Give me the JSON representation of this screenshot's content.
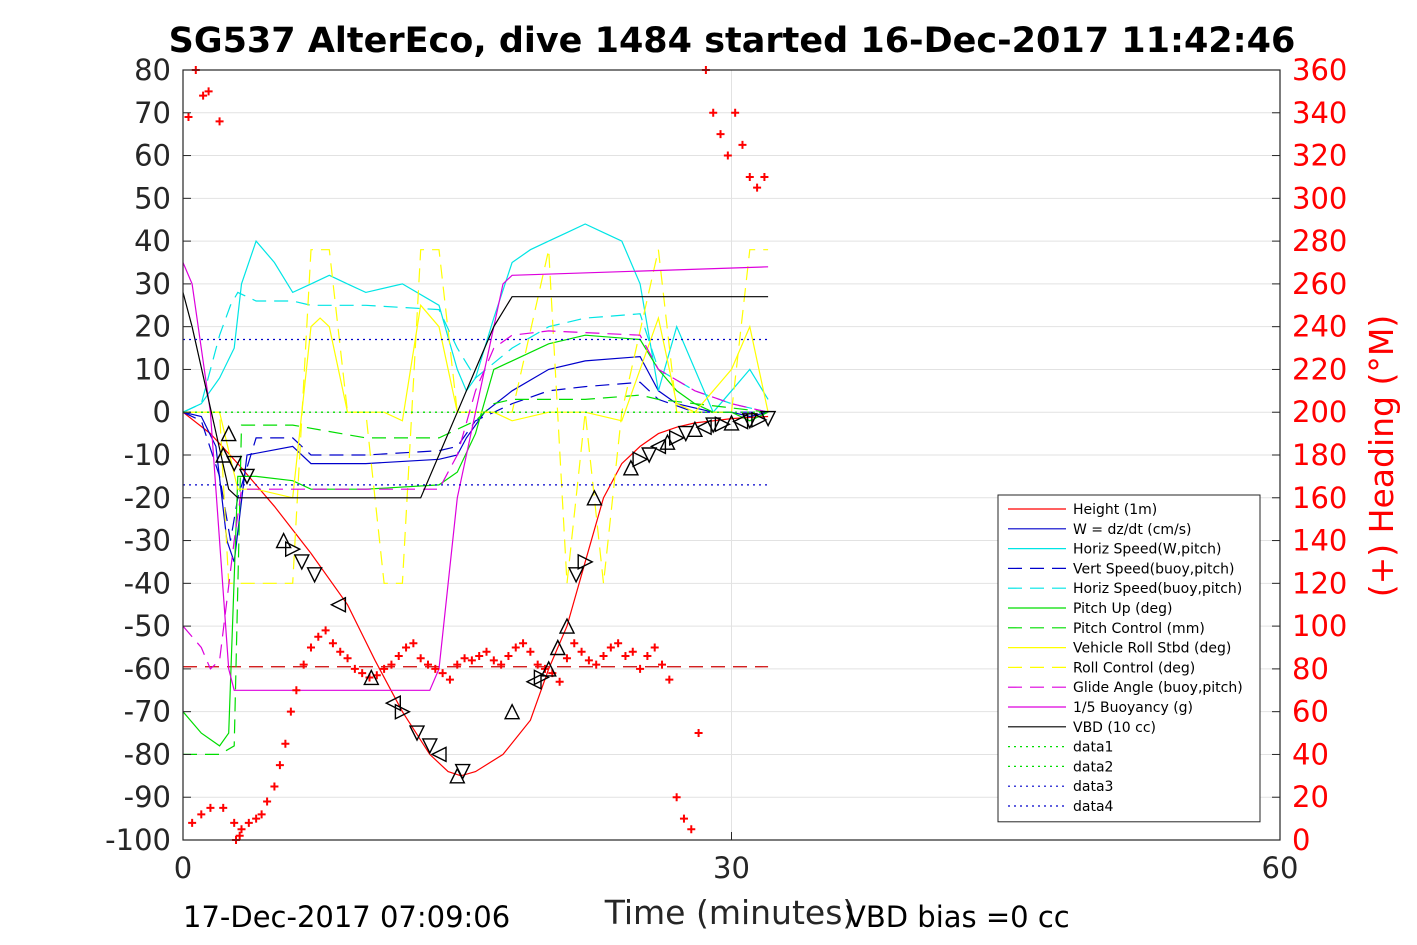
{
  "chart_data": {
    "type": "line",
    "title": "SG537 AlterEco, dive 1484 started 16-Dec-2017 11:42:46",
    "xlabel": "Time (minutes)",
    "ylabel": "",
    "y2label": "(+) Heading (°M)",
    "xlim": [
      0,
      60
    ],
    "ylim": [
      -100,
      80
    ],
    "y2lim": [
      0,
      360
    ],
    "x_ticks": [
      "0",
      "30",
      "60"
    ],
    "y_ticks": [
      "80",
      "70",
      "60",
      "50",
      "40",
      "30",
      "20",
      "10",
      "0",
      "-10",
      "-20",
      "-30",
      "-40",
      "-50",
      "-60",
      "-70",
      "-80",
      "-90",
      "-100"
    ],
    "y2_ticks": [
      "360",
      "340",
      "320",
      "300",
      "280",
      "260",
      "240",
      "220",
      "200",
      "180",
      "160",
      "140",
      "120",
      "100",
      "80",
      "60",
      "40",
      "20",
      "0"
    ],
    "grid": true,
    "legend_position": "lower-right",
    "footer_left": "17-Dec-2017 07:09:06",
    "footer_right": "VBD bias =0 cc",
    "colors": {
      "height": "#ff0000",
      "w": "#0000cc",
      "horiz": "#00e5e5",
      "pitch": "#00dd00",
      "roll": "#ffff00",
      "glide": "#dd00dd",
      "vbd": "#000000",
      "heading": "#ff0000"
    },
    "series": [
      {
        "name": "Height (1m)",
        "color": "#ff0000",
        "style": "solid",
        "x": [
          0,
          1.5,
          3,
          5,
          7,
          9,
          10.5,
          12,
          13.5,
          14.5,
          15.2,
          16,
          17.5,
          19,
          20,
          21,
          22,
          23,
          24,
          25,
          26,
          27,
          28,
          29,
          30,
          31,
          32
        ],
        "y": [
          0,
          -5,
          -12,
          -22,
          -33,
          -45,
          -58,
          -70,
          -80,
          -84,
          -85,
          -84,
          -80,
          -72,
          -60,
          -50,
          -35,
          -20,
          -12,
          -8,
          -5,
          -3.5,
          -2.5,
          -2,
          -1.5,
          -1.2,
          -1
        ]
      },
      {
        "name": "W = dz/dt (cm/s)",
        "color": "#0000cc",
        "style": "solid",
        "x": [
          0,
          1,
          1.8,
          2.4,
          2.8,
          3.5,
          6,
          7,
          10,
          14,
          15,
          15.5,
          16.5,
          18,
          20,
          22,
          25,
          26,
          27,
          28,
          29,
          30,
          31,
          32
        ],
        "y": [
          0,
          -1,
          -8,
          -30,
          -35,
          -10,
          -8,
          -12,
          -12,
          -11,
          -10,
          -6,
          0,
          5,
          10,
          12,
          13,
          5,
          2,
          1,
          0,
          0,
          -1,
          0
        ]
      },
      {
        "name": "Horiz Speed(W,pitch)",
        "color": "#00e5e5",
        "style": "solid",
        "x": [
          0,
          1,
          2,
          2.8,
          3.2,
          4,
          5,
          6,
          7,
          8,
          9,
          10,
          12,
          14,
          15,
          15.5,
          16,
          17,
          18,
          19,
          20,
          21,
          22,
          23,
          24,
          25,
          26,
          27,
          28,
          29,
          30,
          31,
          32
        ],
        "y": [
          0,
          2,
          8,
          15,
          30,
          40,
          35,
          28,
          30,
          32,
          30,
          28,
          30,
          25,
          10,
          5,
          8,
          22,
          35,
          38,
          40,
          42,
          44,
          42,
          40,
          30,
          5,
          20,
          10,
          0,
          5,
          10,
          3
        ]
      },
      {
        "name": "Vert Speed(buoy,pitch)",
        "color": "#0000cc",
        "style": "dashed",
        "x": [
          0,
          1,
          2,
          2.6,
          3,
          4,
          6,
          7,
          10,
          14,
          15,
          16,
          18,
          20,
          22,
          25,
          26,
          28,
          30,
          32
        ],
        "y": [
          0,
          -2,
          -15,
          -30,
          -20,
          -6,
          -6,
          -10,
          -10,
          -9,
          -8,
          -2,
          2,
          5,
          6,
          7,
          3,
          0,
          0,
          0
        ]
      },
      {
        "name": "Horiz Speed(buoy,pitch)",
        "color": "#00e5e5",
        "style": "dashed",
        "x": [
          0,
          1,
          2,
          2.6,
          3,
          4,
          6,
          7,
          10,
          14,
          15,
          16,
          18,
          20,
          22,
          25,
          26,
          28,
          30,
          32
        ],
        "y": [
          0,
          2,
          18,
          25,
          28,
          26,
          26,
          25,
          25,
          24,
          15,
          8,
          15,
          20,
          22,
          23,
          10,
          5,
          2,
          0
        ]
      },
      {
        "name": "Pitch Up (deg)",
        "color": "#00dd00",
        "style": "solid",
        "x": [
          0,
          1,
          2,
          2.5,
          3,
          4,
          6,
          7,
          10,
          14,
          15,
          16,
          17,
          18,
          20,
          22,
          25,
          26,
          27,
          28,
          29,
          30,
          31,
          32
        ],
        "y": [
          -70,
          -75,
          -78,
          -75,
          -15,
          -15,
          -16,
          -18,
          -18,
          -17,
          -14,
          -5,
          10,
          12,
          16,
          18,
          17,
          10,
          5,
          2,
          0,
          0,
          -2,
          0
        ]
      },
      {
        "name": "Pitch Control (mm)",
        "color": "#00dd00",
        "style": "dashed",
        "x": [
          0,
          2,
          2.8,
          3.2,
          6,
          10,
          14,
          15,
          16,
          17,
          18,
          20,
          22,
          25,
          26,
          28,
          30,
          32
        ],
        "y": [
          -80,
          -80,
          -78,
          -3,
          -3,
          -6,
          -6,
          -4,
          -2,
          2,
          3,
          3,
          3,
          4,
          3,
          2,
          1,
          0
        ]
      },
      {
        "name": "Vehicle Roll Stbd (deg)",
        "color": "#ffff00",
        "style": "solid",
        "x": [
          0,
          2,
          3,
          4,
          6,
          7,
          7.5,
          8,
          9,
          10,
          11,
          12,
          13,
          14,
          15,
          16,
          17,
          18,
          20,
          22,
          24,
          26,
          27,
          28,
          29,
          30,
          31,
          32
        ],
        "y": [
          0,
          0,
          -18,
          -18,
          -20,
          20,
          22,
          20,
          0,
          0,
          0,
          -2,
          25,
          20,
          0,
          0,
          0,
          -2,
          0,
          0,
          -2,
          22,
          2,
          0,
          5,
          10,
          20,
          0
        ]
      },
      {
        "name": "Roll Control (deg)",
        "color": "#ffff00",
        "style": "dashed",
        "x": [
          0,
          2,
          2.5,
          3,
          4,
          6,
          7,
          8,
          9,
          10,
          11,
          12,
          13,
          14,
          15,
          16,
          17,
          18,
          20,
          21,
          22,
          23,
          24,
          26,
          27,
          28,
          29,
          30,
          31,
          32
        ],
        "y": [
          0,
          0,
          -40,
          -40,
          -40,
          -40,
          38,
          38,
          0,
          0,
          -40,
          -40,
          38,
          38,
          0,
          0,
          0,
          0,
          38,
          -40,
          0,
          -40,
          0,
          38,
          0,
          0,
          0,
          0,
          38,
          38
        ]
      },
      {
        "name": "Glide Angle (buoy,pitch)",
        "color": "#dd00dd",
        "style": "dashed",
        "x": [
          0,
          1,
          1.5,
          2,
          2.8,
          3.2,
          6,
          10,
          14,
          15,
          16,
          17,
          18,
          20,
          25,
          26,
          28,
          30,
          32
        ],
        "y": [
          -50,
          -55,
          -60,
          -58,
          -30,
          -18,
          -18,
          -18,
          -18,
          -10,
          5,
          15,
          18,
          19,
          18,
          10,
          5,
          2,
          0
        ]
      },
      {
        "name": "1/5 Buoyancy (g)",
        "color": "#dd00dd",
        "style": "solid",
        "x": [
          0,
          0.5,
          1.5,
          2.5,
          2.8,
          6,
          10,
          13.5,
          14,
          15,
          16,
          17.5,
          18,
          32
        ],
        "y": [
          35,
          30,
          0,
          -60,
          -65,
          -65,
          -65,
          -65,
          -60,
          -20,
          0,
          30,
          32,
          34
        ]
      },
      {
        "name": "VBD (10 cc)",
        "color": "#000000",
        "style": "solid",
        "x": [
          0,
          0.5,
          2.5,
          3,
          6,
          10,
          13,
          14,
          15,
          16,
          17,
          18,
          32
        ],
        "y": [
          28,
          20,
          -18,
          -20,
          -20,
          -20,
          -20,
          -10,
          0,
          10,
          20,
          27,
          27
        ]
      },
      {
        "name": "data1",
        "color": "#00dd00",
        "style": "dotted",
        "x": [
          0,
          32
        ],
        "y": [
          0,
          0
        ]
      },
      {
        "name": "data2",
        "color": "#00dd00",
        "style": "dotted",
        "x": [
          0,
          32
        ],
        "y": [
          0,
          0
        ]
      },
      {
        "name": "data3",
        "color": "#0000cc",
        "style": "dotted",
        "x": [
          0,
          32
        ],
        "y": [
          17,
          17
        ]
      },
      {
        "name": "data4",
        "color": "#0000cc",
        "style": "dotted",
        "x": [
          0,
          32
        ],
        "y": [
          -17,
          -17
        ]
      }
    ],
    "ref_lines": [
      {
        "color": "#cc0000",
        "style": "dashed",
        "x": [
          0,
          32
        ],
        "y": [
          -59.5,
          -59.5
        ]
      }
    ],
    "heading_points": {
      "x": [
        0.3,
        0.7,
        1.1,
        1.4,
        2,
        0.5,
        1,
        1.5,
        2.2,
        2.8,
        3.2,
        3.6,
        4,
        4.3,
        4.6,
        5,
        5.3,
        5.6,
        5.9,
        6.2,
        6.6,
        7,
        7.4,
        7.8,
        8.2,
        8.6,
        9,
        9.4,
        9.8,
        10.2,
        10.6,
        11,
        11.4,
        11.8,
        12.2,
        12.6,
        13,
        13.4,
        13.8,
        14.2,
        14.6,
        15,
        15.4,
        15.8,
        16.2,
        16.6,
        17,
        17.4,
        17.8,
        18.2,
        18.6,
        19,
        19.4,
        19.8,
        20.2,
        20.6,
        21,
        21.4,
        21.8,
        22.2,
        22.6,
        23,
        23.4,
        23.8,
        24.2,
        24.6,
        25,
        25.4,
        25.8,
        26.2,
        26.6,
        27,
        27.4,
        27.8,
        28.2,
        28.6,
        29,
        29.4,
        29.8,
        30.2,
        30.6,
        31,
        31.4,
        31.8,
        2.9,
        3.1
      ],
      "y": [
        338,
        360,
        348,
        350,
        336,
        8,
        12,
        15,
        15,
        8,
        5,
        8,
        10,
        12,
        18,
        25,
        35,
        45,
        60,
        70,
        82,
        90,
        95,
        98,
        92,
        88,
        85,
        80,
        78,
        76,
        77,
        80,
        82,
        86,
        90,
        92,
        85,
        82,
        80,
        78,
        75,
        82,
        85,
        84,
        86,
        88,
        84,
        82,
        86,
        90,
        92,
        88,
        82,
        80,
        78,
        74,
        85,
        92,
        88,
        84,
        82,
        86,
        90,
        92,
        86,
        88,
        80,
        86,
        90,
        82,
        75,
        20,
        10,
        5,
        50,
        360,
        340,
        330,
        320,
        340,
        325,
        310,
        305,
        310,
        0,
        2
      ]
    },
    "markers": {
      "x": [
        2.2,
        2.5,
        2.8,
        3.5,
        5.5,
        6,
        6.5,
        7.2,
        8.5,
        10.3,
        11.5,
        12,
        12.8,
        13.5,
        14,
        15,
        15.3,
        18,
        19.2,
        19.6,
        20,
        20.5,
        21,
        21.5,
        22,
        22.5,
        24.5,
        25,
        25.5,
        26,
        26.5,
        27,
        27.5,
        28,
        28.5,
        29,
        29.5,
        30,
        30.5,
        31,
        31.5,
        32
      ],
      "y": [
        -10,
        -5,
        -12,
        -15,
        -30,
        -32,
        -35,
        -38,
        -45,
        -62,
        -68,
        -70,
        -75,
        -78,
        -80,
        -85,
        -84,
        -70,
        -63,
        -62,
        -60,
        -55,
        -50,
        -38,
        -35,
        -20,
        -13,
        -11,
        -10,
        -8,
        -7,
        -6,
        -5,
        -4,
        -3.5,
        -3,
        -2.8,
        -2.5,
        -2.2,
        -2,
        -1.8,
        -1.5
      ],
      "dir": [
        "up",
        "up",
        "down",
        "down",
        "up",
        "right",
        "down",
        "down",
        "left",
        "up",
        "left",
        "right",
        "down",
        "down",
        "left",
        "up",
        "down",
        "up",
        "left",
        "right",
        "up",
        "up",
        "up",
        "down",
        "right",
        "up",
        "up",
        "right",
        "down",
        "left",
        "up",
        "right",
        "down",
        "up",
        "left",
        "down",
        "right",
        "up",
        "left",
        "down",
        "right",
        "down"
      ]
    },
    "legend_entries": [
      "Height (1m)",
      "W = dz/dt (cm/s)",
      "Horiz Speed(W,pitch)",
      "Vert Speed(buoy,pitch)",
      "Horiz Speed(buoy,pitch)",
      "Pitch Up (deg)",
      "Pitch Control (mm)",
      "Vehicle Roll Stbd (deg)",
      "Roll Control (deg)",
      "Glide Angle (buoy,pitch)",
      "1/5 Buoyancy (g)",
      "VBD (10 cc)",
      "data1",
      "data2",
      "data3",
      "data4"
    ]
  }
}
